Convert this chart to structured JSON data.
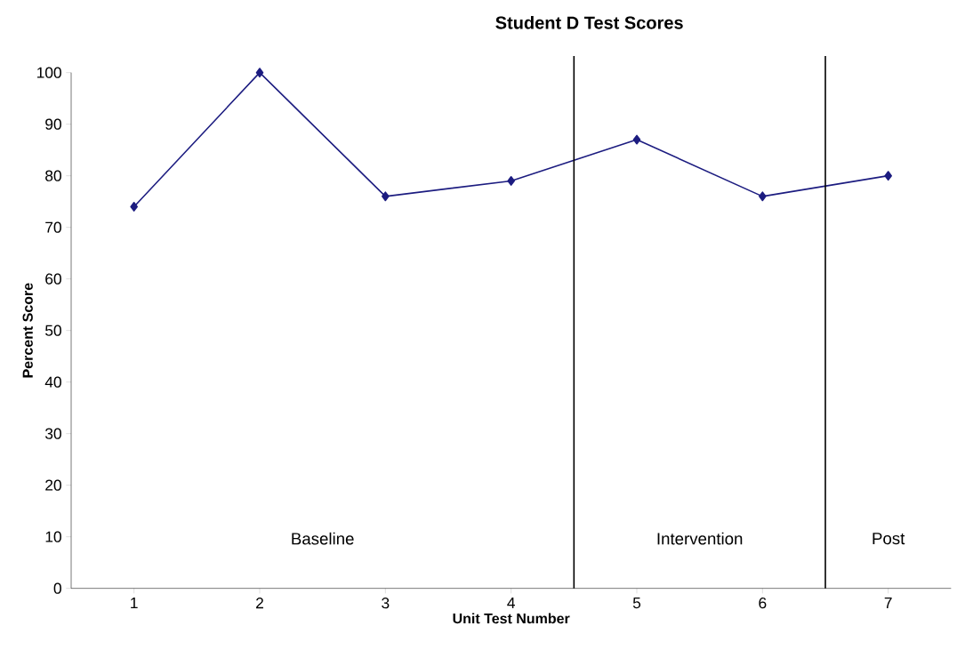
{
  "chart_data": {
    "type": "line",
    "title": "Student D Test Scores",
    "xlabel": "Unit Test Number",
    "ylabel": "Percent Score",
    "x": [
      1,
      2,
      3,
      4,
      5,
      6,
      7
    ],
    "series": [
      {
        "color": "#1c1c80",
        "values": [
          74,
          100,
          76,
          79,
          87,
          76,
          80
        ]
      }
    ],
    "xlim": [
      0.5,
      7.5
    ],
    "xticks": [
      1,
      2,
      3,
      4,
      5,
      6,
      7
    ],
    "ylim": [
      0,
      100
    ],
    "yticks": [
      0,
      10,
      20,
      30,
      40,
      50,
      60,
      70,
      80,
      90,
      100
    ],
    "ref_lines": [
      {
        "axis": "x",
        "value": 4.5,
        "color": "#000000"
      },
      {
        "axis": "x",
        "value": 6.5,
        "color": "#000000"
      }
    ],
    "annotations": [
      "Baseline",
      "Intervention",
      "Post"
    ],
    "marker": "diamond",
    "line_style": "solid",
    "grid": false
  }
}
